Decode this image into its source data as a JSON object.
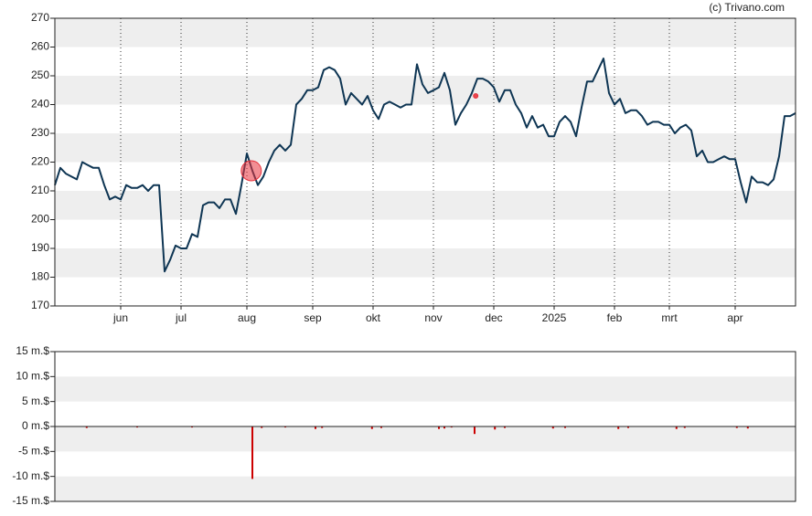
{
  "chart_data": [
    {
      "type": "line",
      "source": "(c) Trivano.com",
      "color": "#0e3553",
      "band_color": "#eeeeee",
      "band_first": true,
      "values": [
        212,
        218,
        216,
        215,
        214,
        220,
        219,
        218,
        218,
        212,
        207,
        208,
        207,
        212,
        211,
        211,
        212,
        210,
        212,
        212,
        182,
        186,
        191,
        190,
        190,
        195,
        194,
        205,
        206,
        206,
        204,
        207,
        207,
        202,
        212,
        223,
        217,
        212,
        215,
        220,
        224,
        226,
        224,
        226,
        240,
        242,
        245,
        245,
        246,
        252,
        253,
        252,
        249,
        240,
        244,
        242,
        240,
        243,
        238,
        235,
        240,
        241,
        240,
        239,
        240,
        240,
        254,
        247,
        244,
        245,
        246,
        251,
        245,
        233,
        237,
        240,
        244,
        249,
        249,
        248,
        246,
        241,
        245,
        245,
        240,
        237,
        232,
        236,
        232,
        233,
        229,
        229,
        234,
        236,
        234,
        229,
        239,
        248,
        248,
        252,
        256,
        244,
        240,
        242,
        237,
        238,
        238,
        236,
        233,
        234,
        234,
        233,
        233,
        230,
        232,
        233,
        231,
        222,
        224,
        220,
        220,
        221,
        222,
        221,
        221,
        213,
        206,
        215,
        213,
        213,
        212,
        214,
        222,
        236,
        236,
        237
      ],
      "markers": [
        {
          "x": 35.8,
          "y": 217
        },
        {
          "x": 76.7,
          "y": 243
        }
      ],
      "marker_color": "#e8323c",
      "xlim": [
        0,
        135
      ],
      "ylim": [
        170,
        270
      ],
      "xticks": [
        {
          "value": 12,
          "label": "jun"
        },
        {
          "value": 23,
          "label": "jul"
        },
        {
          "value": 35,
          "label": "aug"
        },
        {
          "value": 47,
          "label": "sep"
        },
        {
          "value": 58,
          "label": "okt"
        },
        {
          "value": 69,
          "label": "nov"
        },
        {
          "value": 80,
          "label": "dec"
        },
        {
          "value": 91,
          "label": "2025"
        },
        {
          "value": 102,
          "label": "feb"
        },
        {
          "value": 112,
          "label": "mrt"
        },
        {
          "value": 124,
          "label": "apr"
        }
      ],
      "yticks": [
        170,
        180,
        190,
        200,
        210,
        220,
        230,
        240,
        250,
        260,
        270
      ]
    },
    {
      "type": "bar",
      "color": "#cc0000",
      "band_color": "#eeeeee",
      "band_first": false,
      "x": [
        5.8,
        15,
        25,
        36,
        37.7,
        42,
        47.5,
        48.7,
        57.8,
        59.5,
        70,
        71,
        72.3,
        76.5,
        80.2,
        82,
        90.8,
        93,
        102.7,
        104.5,
        113.3,
        114.8,
        124.3,
        126.3
      ],
      "values": [
        -0.3,
        -0.2,
        -0.2,
        -10.5,
        -0.3,
        -0.2,
        -0.5,
        -0.3,
        -0.5,
        -0.3,
        -0.5,
        -0.4,
        -0.2,
        -1.5,
        -0.6,
        -0.3,
        -0.4,
        -0.3,
        -0.5,
        -0.3,
        -0.5,
        -0.3,
        -0.3,
        -0.4
      ],
      "xlim": [
        0,
        135
      ],
      "ylim": [
        -15,
        15
      ],
      "yticks": [
        {
          "value": -15,
          "label": "-15 m.$"
        },
        {
          "value": -10,
          "label": "-10 m.$"
        },
        {
          "value": -5,
          "label": "-5 m.$"
        },
        {
          "value": 0,
          "label": "0 m.$"
        },
        {
          "value": 5,
          "label": "5 m.$"
        },
        {
          "value": 10,
          "label": "10 m.$"
        },
        {
          "value": 15,
          "label": "15 m.$"
        }
      ]
    }
  ]
}
